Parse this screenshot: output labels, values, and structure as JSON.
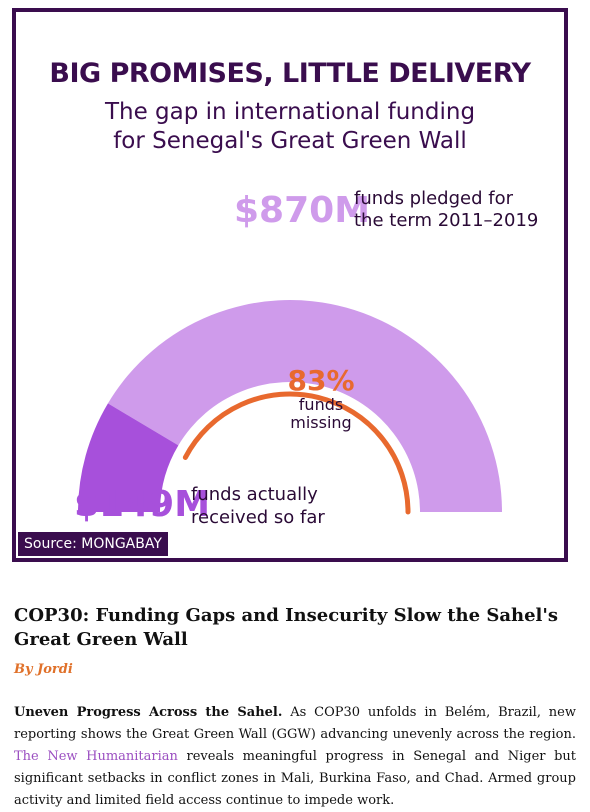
{
  "infographic": {
    "title": "BIG PROMISES, LITTLE DELIVERY",
    "subtitle_line1": "The gap in international funding",
    "subtitle_line2": "for Senegal's Great Green Wall",
    "source": "Source: MONGABAY"
  },
  "chart_data": {
    "type": "pie",
    "style": "semi-donut gauge",
    "total": {
      "value_text": "$870M",
      "value": 870,
      "label_line1": "funds pledged for",
      "label_line2": "the term 2011–2019"
    },
    "received": {
      "value_text": "$149M",
      "value": 149,
      "label_line1": "funds actually",
      "label_line2": "received so far"
    },
    "missing": {
      "value_text": "83%",
      "value": 83,
      "label_line1": "funds",
      "label_line2": "missing"
    },
    "colors": {
      "pledged": "#cf9beb",
      "received": "#a750db",
      "missing_arc": "#e8692e",
      "text_dark": "#3a0d4e"
    }
  },
  "article": {
    "headline": "COP30: Funding Gaps and Insecurity Slow the Sahel's Great Green Wall",
    "byline": "By Jordi",
    "lead": "Uneven Progress Across the Sahel.",
    "para_part1": " As COP30 unfolds in Belém, Brazil, new reporting shows the Great Green Wall (GGW) advancing unevenly across the region. ",
    "link_text": "The New Humanitarian",
    "para_part2": " reveals meaningful progress in Senegal and Niger but significant setbacks in conflict zones in Mali, Burkina Faso, and Chad. Armed group activity and limited field access continue to impede work."
  }
}
